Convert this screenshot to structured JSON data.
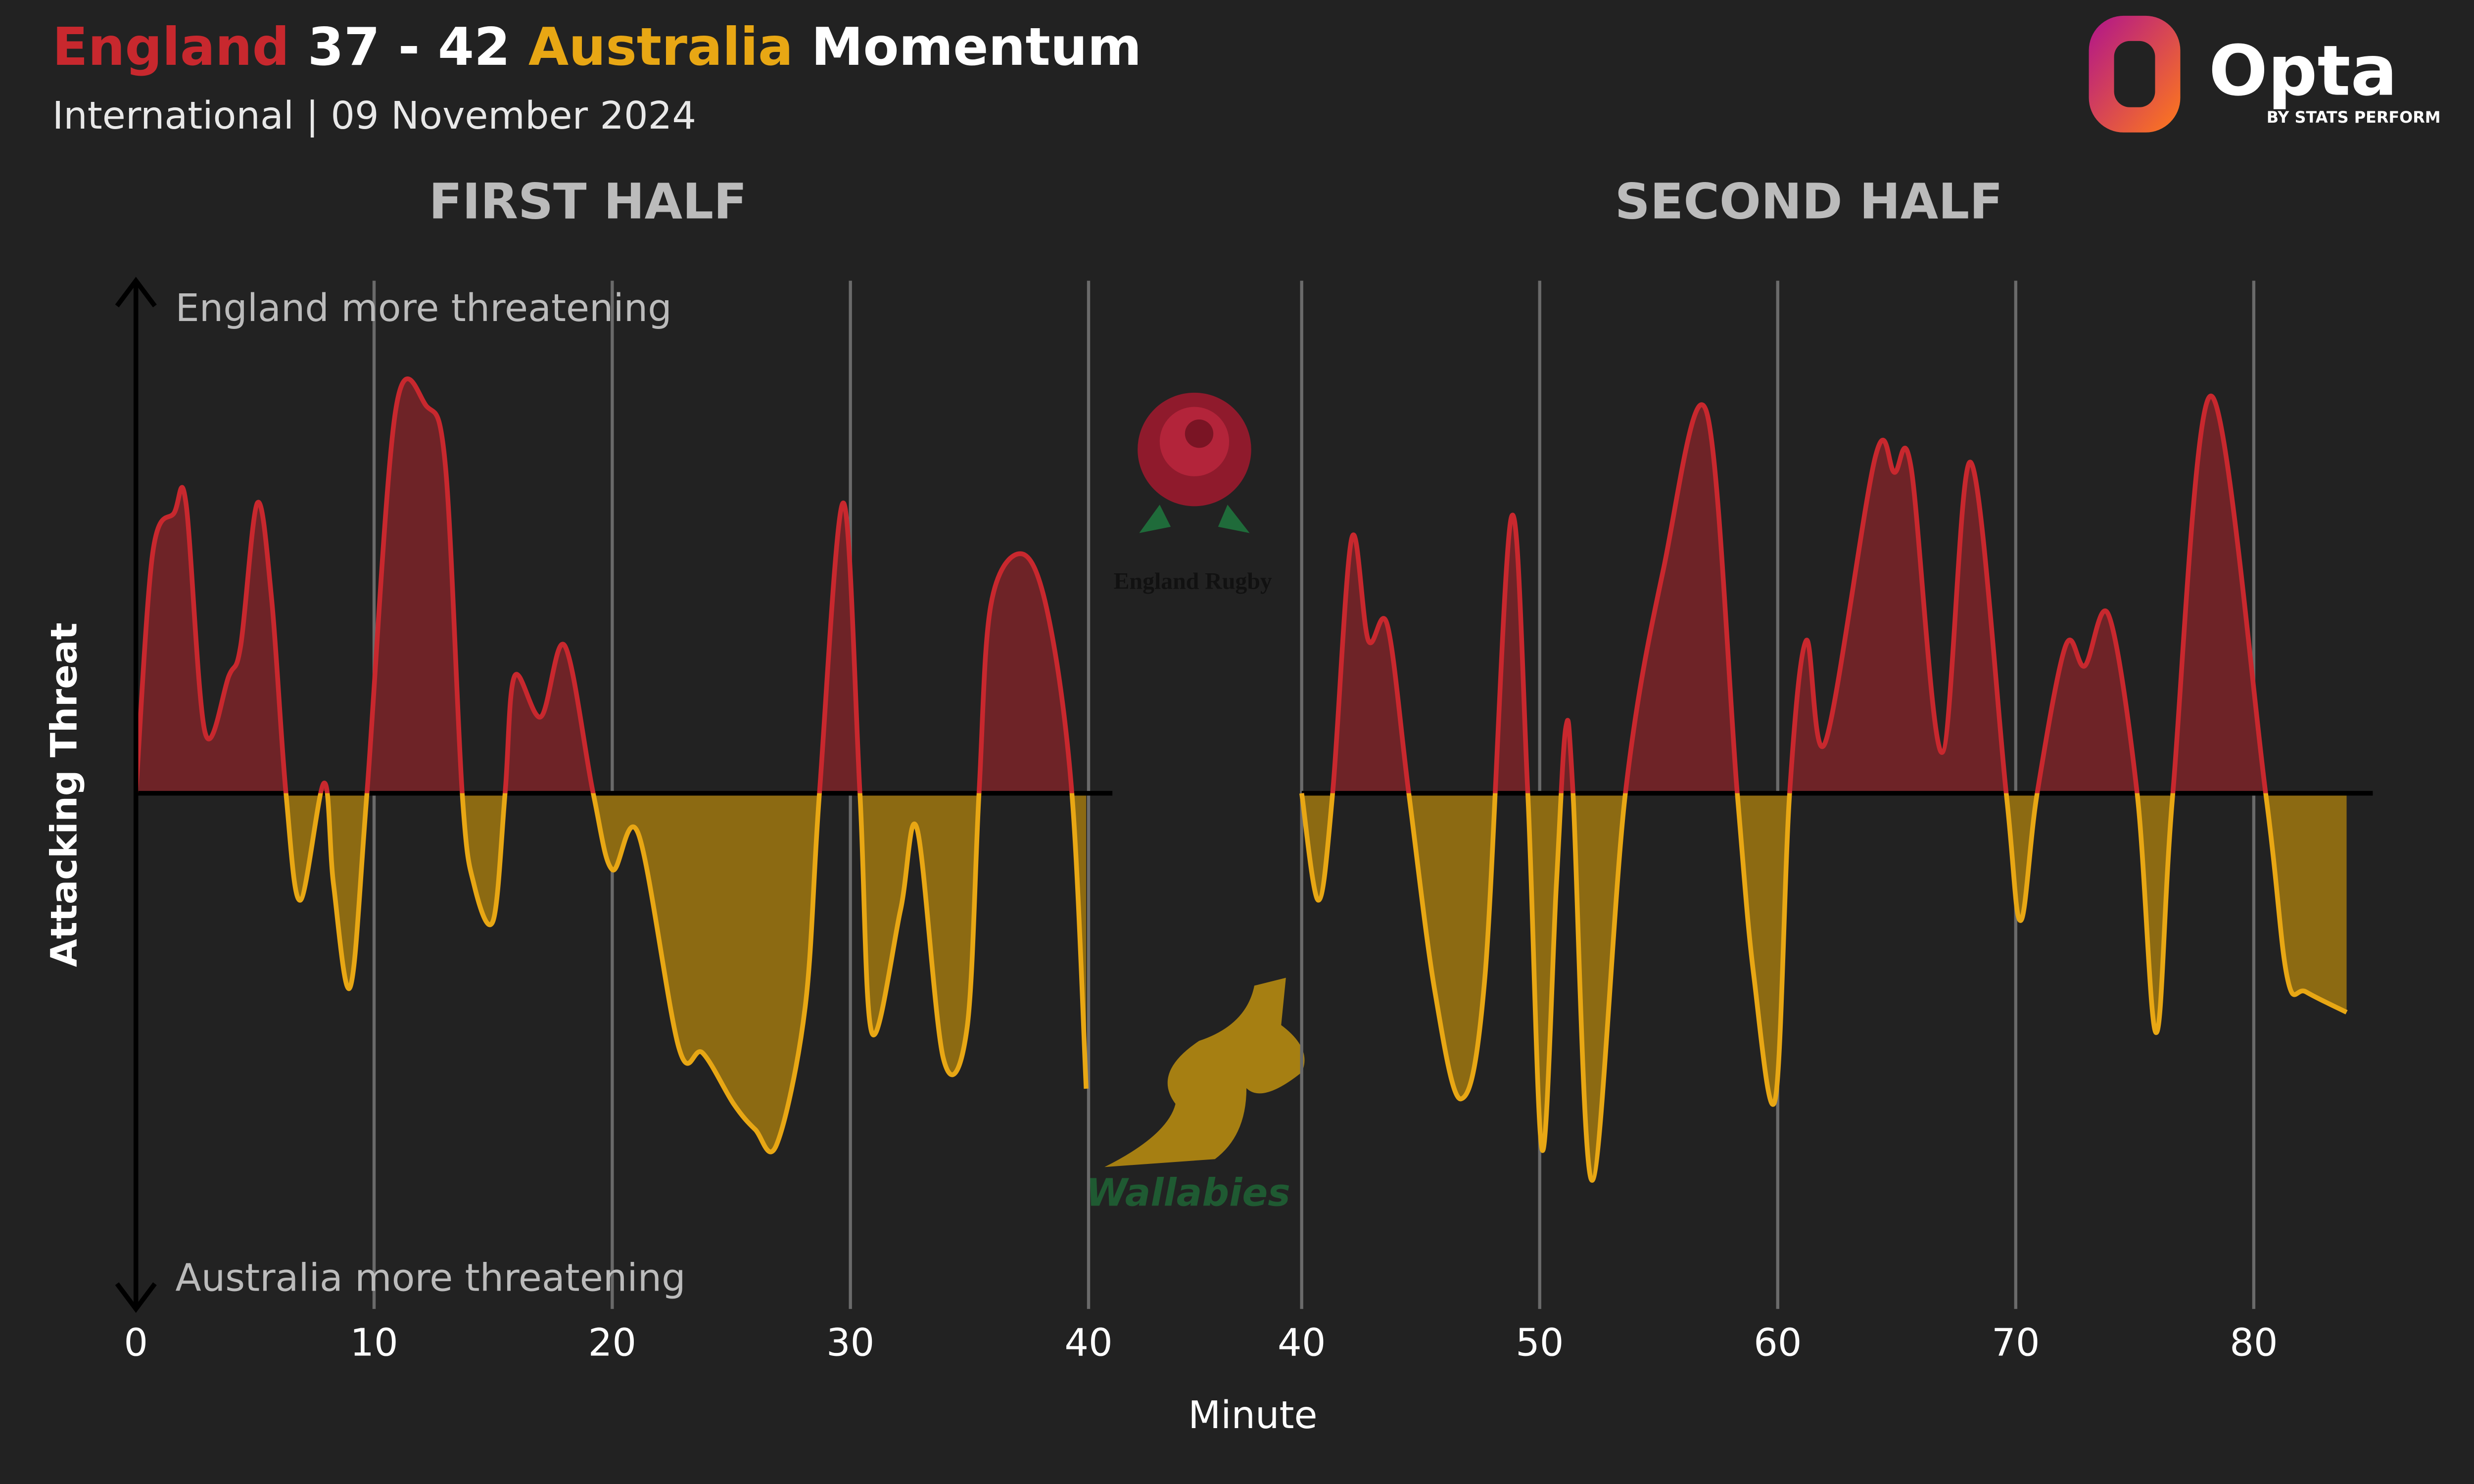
{
  "header": {
    "home": "England",
    "score": "37 - 42",
    "away": "Australia",
    "suffix": "Momentum",
    "subtitle": "International | 09 November 2024"
  },
  "ylabel": "Attacking Threat",
  "xlabel": "Minute",
  "annotations": {
    "top": "England more threatening",
    "bottom": "Australia more threatening"
  },
  "logos": {
    "brand": "Opta",
    "brand_sub": "BY STATS PERFORM",
    "home": "England Rugby",
    "away": "Wallabies"
  },
  "chart_data": [
    {
      "type": "area",
      "title": "FIRST HALF",
      "x": [
        0,
        0.7,
        1.6,
        2.1,
        2.9,
        3.9,
        4.4,
        5.1,
        5.7,
        6.3,
        6.9,
        7.9,
        8.3,
        9.0,
        9.7,
        10.9,
        12.2,
        13.0,
        13.7,
        14.2,
        15.0,
        15.5,
        15.9,
        17.0,
        18.0,
        19.2,
        20.0,
        21.1,
        22.8,
        23.8,
        25.1,
        26.0,
        26.9,
        28.1,
        28.7,
        29.7,
        30.4,
        30.9,
        32.1,
        32.8,
        33.9,
        34.9,
        35.4,
        35.9,
        37.2,
        38.3,
        39.3,
        39.9
      ],
      "values": [
        0,
        0.47,
        0.55,
        0.57,
        0.12,
        0.23,
        0.29,
        0.57,
        0.38,
        0,
        -0.21,
        0.02,
        -0.18,
        -0.38,
        0,
        0.75,
        0.76,
        0.64,
        0,
        -0.18,
        -0.25,
        0,
        0.23,
        0.15,
        0.29,
        0,
        -0.15,
        -0.08,
        -0.5,
        -0.51,
        -0.61,
        -0.66,
        -0.69,
        -0.42,
        0,
        0.57,
        0,
        -0.47,
        -0.23,
        -0.07,
        -0.52,
        -0.46,
        0,
        0.37,
        0.47,
        0.35,
        0,
        -0.58
      ],
      "xlim": [
        0,
        41
      ],
      "xticks": [
        0,
        10,
        20,
        30,
        40
      ],
      "ylim": [
        -1,
        1
      ],
      "colors": {
        "positive": "#c8282e",
        "positive_fill": "#6e2327",
        "negative": "#e8a714",
        "negative_fill": "#8c6a12"
      },
      "grid": true
    },
    {
      "type": "area",
      "title": "SECOND HALF",
      "x": [
        40,
        40.7,
        41.3,
        42.1,
        42.8,
        43.6,
        44.5,
        45.6,
        46.7,
        47.7,
        48.8,
        49.5,
        50.1,
        50.7,
        51.1,
        51.4,
        52.2,
        53.6,
        55.2,
        57.0,
        58.3,
        59.0,
        59.9,
        60.5,
        61.2,
        62.0,
        64.1,
        64.9,
        65.6,
        66.9,
        68.1,
        69.6,
        70.2,
        70.9,
        72.1,
        72.9,
        73.9,
        75.1,
        75.9,
        76.6,
        78.2,
        80.5,
        81.4,
        82.2,
        83.9
      ],
      "values": [
        0,
        -0.21,
        0,
        0.5,
        0.3,
        0.33,
        0,
        -0.39,
        -0.6,
        -0.36,
        0.54,
        0,
        -0.7,
        -0.18,
        0.13,
        0,
        -0.76,
        0,
        0.44,
        0.75,
        0,
        -0.36,
        -0.6,
        0,
        0.3,
        0.1,
        0.66,
        0.63,
        0.64,
        0.08,
        0.65,
        0,
        -0.25,
        0,
        0.29,
        0.25,
        0.35,
        0,
        -0.47,
        0,
        0.78,
        0,
        -0.36,
        -0.39,
        -0.43
      ],
      "xlim": [
        40,
        85
      ],
      "xticks": [
        40,
        50,
        60,
        70,
        80
      ],
      "ylim": [
        -1,
        1
      ],
      "colors": {
        "positive": "#c8282e",
        "positive_fill": "#6e2327",
        "negative": "#e8a714",
        "negative_fill": "#8c6a12"
      },
      "grid": true
    }
  ]
}
